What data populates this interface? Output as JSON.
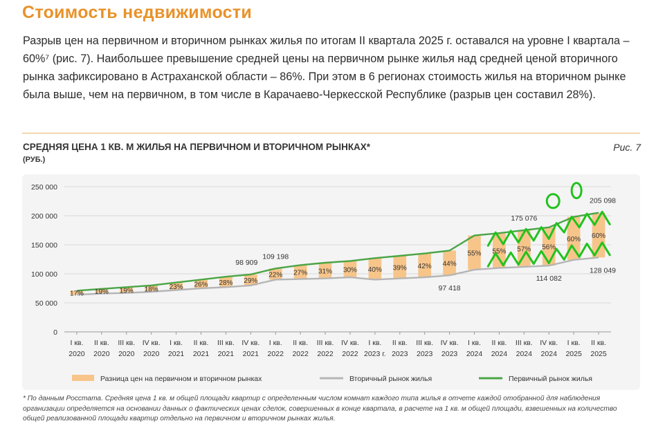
{
  "header": {
    "title": "Стоимость недвижимости",
    "paragraph": "Разрыв цен на первичном и вторичном рынках жилья по итогам II квартала 2025 г. оставался на уровне I квартала – 60%⁷ (рис. 7). Наибольшее превышение средней цены на первичном рынке жилья над средней ценой вторичного рынка зафиксировано в Астраханской области – 86%. При этом в 6 регионах стоимость жилья на вторичном рынке была выше, чем на первичном, в том числе в Карачаево-Черкесской Республике (разрыв цен составил 28%)."
  },
  "figure": {
    "title": "СРЕДНЯЯ ЦЕНА 1 КВ. М ЖИЛЬЯ НА ПЕРВИЧНОМ И ВТОРИЧНОМ РЫНКАХ*",
    "unit": "(РУБ.)",
    "label": "Рис. 7"
  },
  "colors": {
    "accent": "#e8922a",
    "bar": "#f7c58a",
    "primary_line": "#4aa545",
    "secondary_line": "#b5b5b5",
    "annotation": "#22c21e"
  },
  "chart_data": {
    "type": "line",
    "categories": [
      [
        "I кв.",
        "2020"
      ],
      [
        "II кв.",
        "2020"
      ],
      [
        "III кв.",
        "2020"
      ],
      [
        "IV кв.",
        "2020"
      ],
      [
        "I кв.",
        "2021"
      ],
      [
        "II кв.",
        "2021"
      ],
      [
        "III кв.",
        "2021"
      ],
      [
        "IV кв.",
        "2021"
      ],
      [
        "I кв.",
        "2022"
      ],
      [
        "II кв.",
        "2022"
      ],
      [
        "III кв.",
        "2022"
      ],
      [
        "IV кв.",
        "2022"
      ],
      [
        "I кв.",
        "2023 г."
      ],
      [
        "II кв.",
        "2023"
      ],
      [
        "III кв.",
        "2023"
      ],
      [
        "IV кв.",
        "2023"
      ],
      [
        "I кв.",
        "2024"
      ],
      [
        "II кв.",
        "2024"
      ],
      [
        "III кв.",
        "2024"
      ],
      [
        "IV кв.",
        "2024"
      ],
      [
        "I кв.",
        "2025"
      ],
      [
        "II кв.",
        "2025"
      ]
    ],
    "series": [
      {
        "name": "Первичный рынок жилья",
        "values": [
          71000,
          74000,
          77000,
          80000,
          85000,
          90000,
          95000,
          98909,
          109198,
          115000,
          119000,
          122000,
          127000,
          131000,
          135000,
          140000,
          166000,
          170000,
          175076,
          180000,
          198000,
          205098
        ]
      },
      {
        "name": "Вторичный рынок жилья",
        "values": [
          64000,
          66000,
          67000,
          69000,
          72000,
          75000,
          77000,
          80000,
          90000,
          91000,
          92000,
          94000,
          90000,
          92000,
          94000,
          97418,
          107000,
          110000,
          112000,
          114082,
          124000,
          128049
        ]
      },
      {
        "name": "Разница цен на первичном и вторичном рынках",
        "values": [
          17,
          19,
          19,
          18,
          23,
          26,
          28,
          29,
          22,
          27,
          31,
          30,
          40,
          39,
          42,
          44,
          55,
          55,
          57,
          56,
          60,
          60
        ],
        "unit": "%"
      }
    ],
    "value_labels": [
      {
        "index": 7,
        "series": "primary",
        "text": "98 909"
      },
      {
        "index": 8,
        "series": "primary",
        "text": "109 198"
      },
      {
        "index": 15,
        "series": "secondary",
        "text": "97 418"
      },
      {
        "index": 18,
        "series": "primary",
        "text": "175 076"
      },
      {
        "index": 19,
        "series": "secondary",
        "text": "114 082"
      },
      {
        "index": 21,
        "series": "primary",
        "text": "205 098"
      },
      {
        "index": 21,
        "series": "secondary",
        "text": "128 049"
      }
    ],
    "yticks": [
      0,
      50000,
      100000,
      150000,
      200000,
      250000
    ],
    "ytick_labels": [
      "0",
      "50 000",
      "100 000",
      "150 000",
      "200 000",
      "250 000"
    ],
    "ylim": [
      0,
      250000
    ],
    "legend": {
      "bar": "Разница цен на первичном и вторичном рынках",
      "secondary": "Вторичный рынок жилья",
      "primary": "Первичный рынок жилья"
    }
  },
  "footnote": "* По данным Росстата. Средняя цена 1 кв. м общей площади квартир с определенным числом комнат каждого типа жилья в отчете каждой отобранной для наблюдения организации определяется на основании данных о фактических ценах сделок, совершенных в конце квартала, в расчете на 1 кв. м общей площади, взвешенных на количество общей реализованной площади квартир отдельно на первичном и вторичном рынках жилья."
}
